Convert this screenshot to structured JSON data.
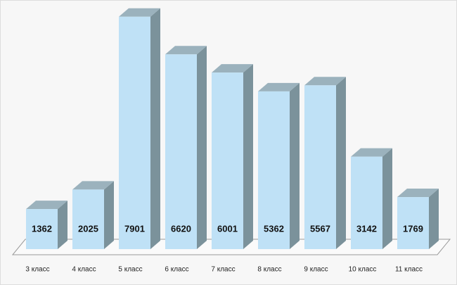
{
  "chart_data": {
    "type": "bar3d",
    "categories": [
      "3 класс",
      "4 класс",
      "5 класс",
      "6 класс",
      "7 класс",
      "8 класс",
      "9 класс",
      "10 класс",
      "11 класс"
    ],
    "values": [
      1362,
      2025,
      7901,
      6620,
      6001,
      5362,
      5567,
      3142,
      1769
    ],
    "color": "#bfe1f6"
  }
}
